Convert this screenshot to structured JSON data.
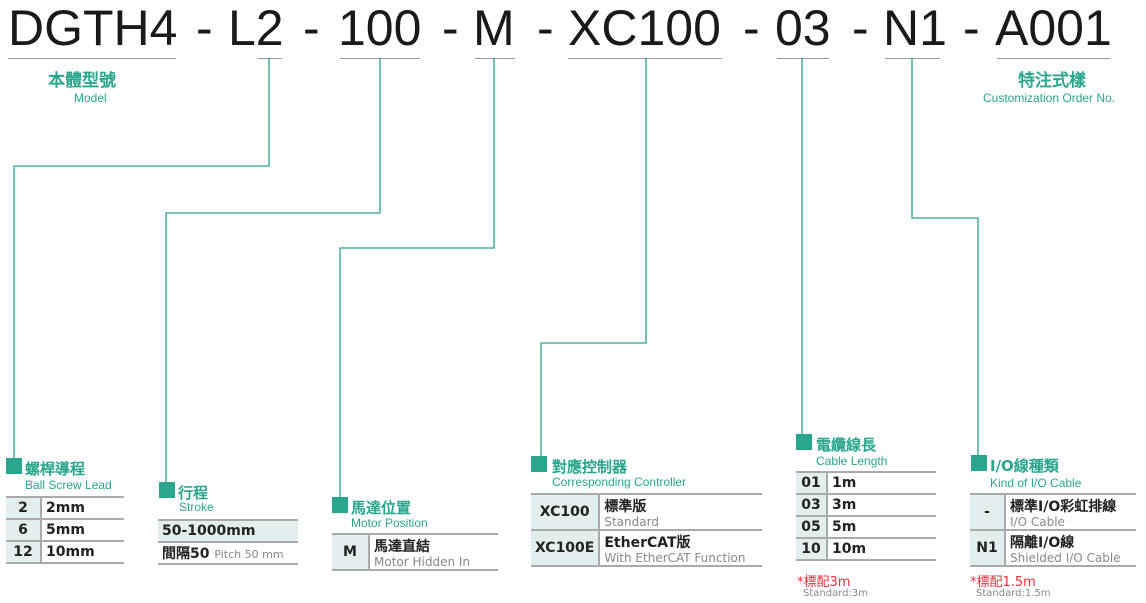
{
  "code": {
    "segments": [
      "DGTH4",
      "L2",
      "100",
      "M",
      "XC100",
      "03",
      "N1",
      "A001"
    ],
    "separator": "-"
  },
  "model": {
    "zh": "本體型號",
    "en": "Model"
  },
  "custom": {
    "zh": "特注式樣",
    "en": "Customization Order No."
  },
  "lead": {
    "zh": "螺桿導程",
    "en": "Ball Screw Lead",
    "rows": [
      {
        "code": "2",
        "value": "2mm"
      },
      {
        "code": "6",
        "value": "5mm"
      },
      {
        "code": "12",
        "value": "10mm"
      }
    ]
  },
  "stroke": {
    "zh": "行程",
    "en": "Stroke",
    "range": "50-1000mm",
    "pitch_zh": "間隔50",
    "pitch_en": "Pitch 50 mm"
  },
  "motor": {
    "zh": "馬達位置",
    "en": "Motor Position",
    "rows": [
      {
        "code": "M",
        "zh": "馬達直結",
        "en": "Motor Hidden In"
      }
    ]
  },
  "controller": {
    "zh": "對應控制器",
    "en": "Corresponding Controller",
    "rows": [
      {
        "code": "XC100",
        "zh": "標準版",
        "en": "Standard"
      },
      {
        "code": "XC100E",
        "zh": "EtherCAT版",
        "en": "With EtherCAT Function"
      }
    ]
  },
  "cable": {
    "zh": "電纜線長",
    "en": "Cable Length",
    "rows": [
      {
        "code": "01",
        "value": "1m"
      },
      {
        "code": "03",
        "value": "3m"
      },
      {
        "code": "05",
        "value": "5m"
      },
      {
        "code": "10",
        "value": "10m"
      }
    ],
    "note": "*標配3m",
    "note_en": "Standard:3m"
  },
  "io": {
    "zh": "I/O線種類",
    "en": "Kind of I/O Cable",
    "rows": [
      {
        "code": "-",
        "zh": "標準I/O彩虹排線",
        "en": "I/O Cable"
      },
      {
        "code": "N1",
        "zh": "隔離I/O線",
        "en": "Shielded I/O Cable"
      }
    ],
    "note": "*標配1.5m",
    "note_en": "Standard:1.5m"
  },
  "colors": {
    "accent": "#2aa58e",
    "note": "#e8303a",
    "cell": "#e3efee"
  }
}
